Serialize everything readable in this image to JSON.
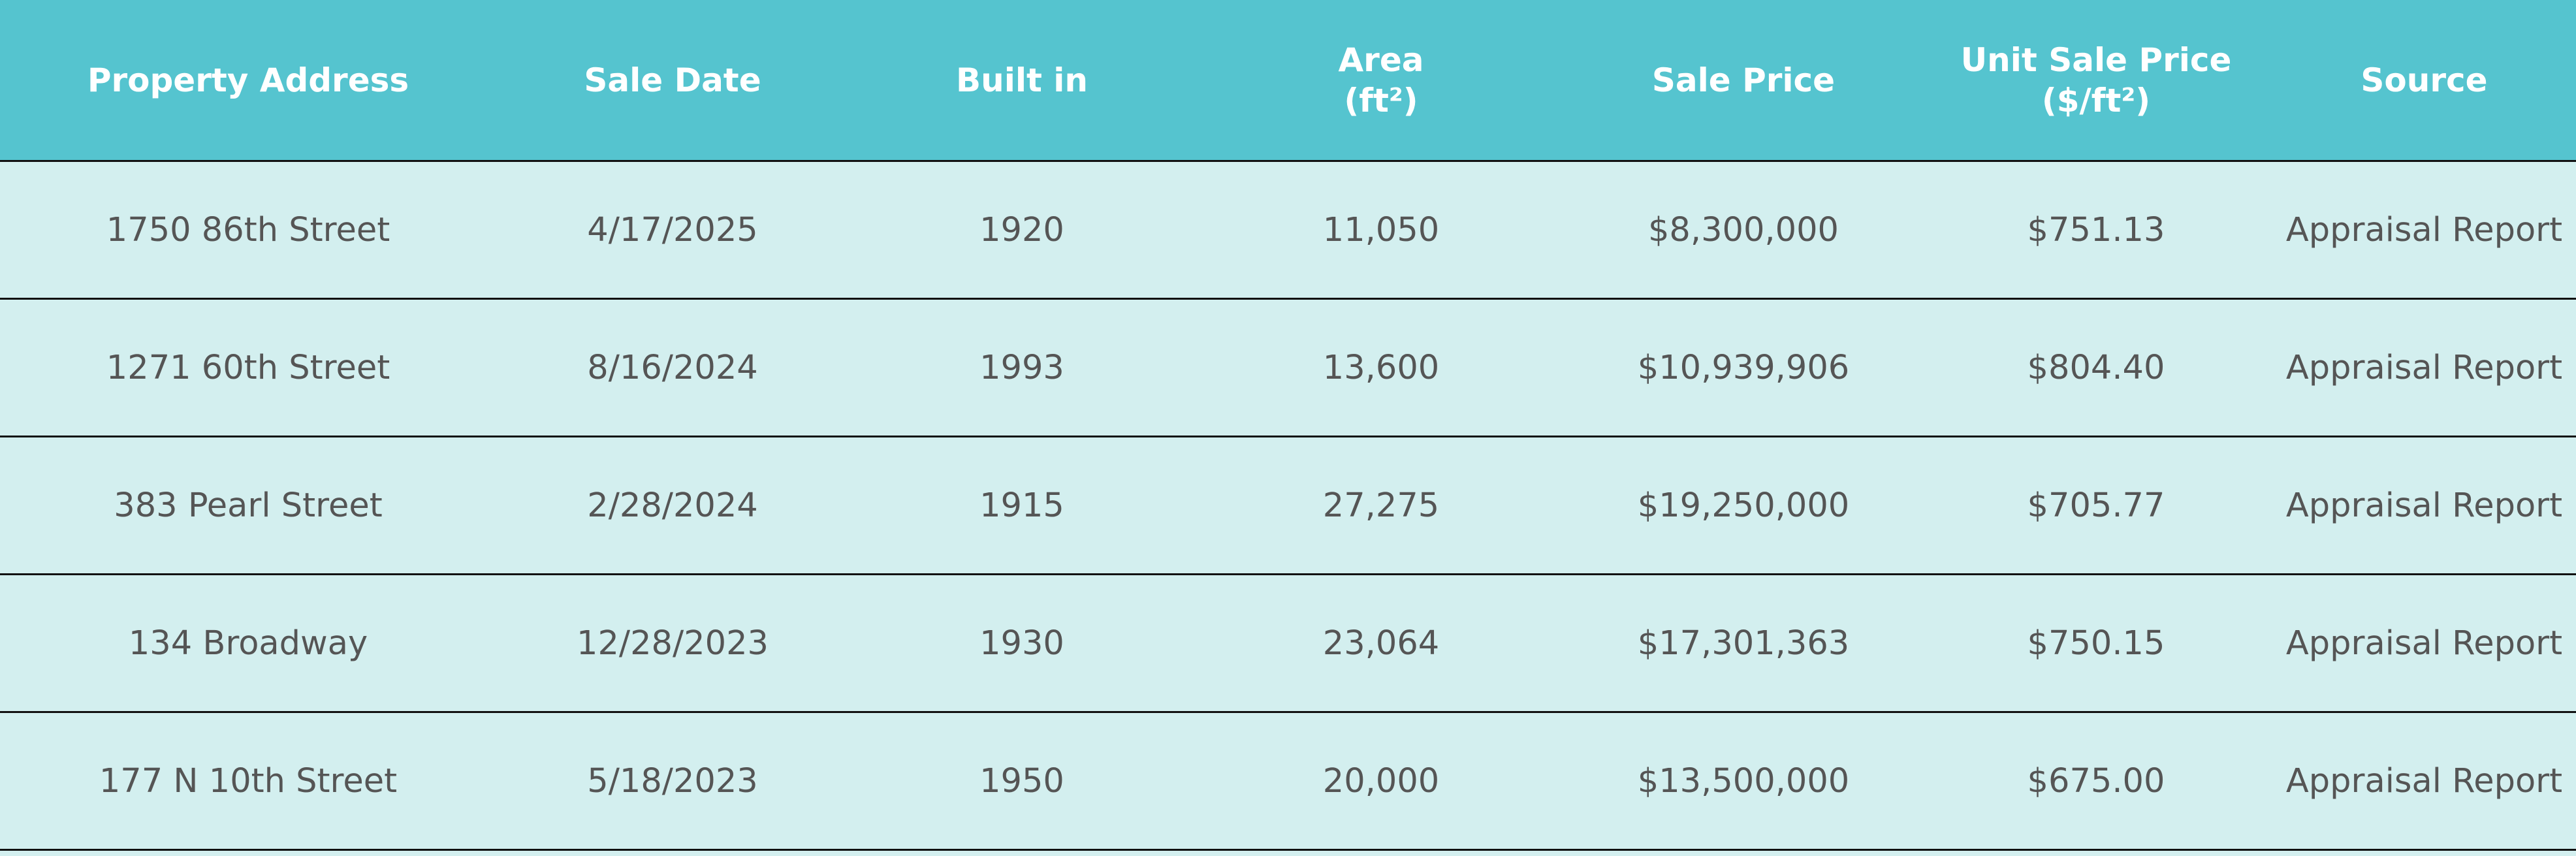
{
  "table": {
    "headers": [
      {
        "line1": "Property Address",
        "line2": ""
      },
      {
        "line1": "Sale Date",
        "line2": ""
      },
      {
        "line1": "Built in",
        "line2": ""
      },
      {
        "line1": "Area",
        "line2": "(ft²)"
      },
      {
        "line1": "Sale Price",
        "line2": ""
      },
      {
        "line1": "Unit Sale Price",
        "line2": "($/ft²)"
      },
      {
        "line1": "Source",
        "line2": ""
      }
    ],
    "rows": [
      [
        "1750 86th Street",
        "4/17/2025",
        "1920",
        "11,050",
        "$8,300,000",
        "$751.13",
        "Appraisal Report"
      ],
      [
        "1271 60th Street",
        "8/16/2024",
        "1993",
        "13,600",
        "$10,939,906",
        "$804.40",
        "Appraisal Report"
      ],
      [
        "383 Pearl Street",
        "2/28/2024",
        "1915",
        "27,275",
        "$19,250,000",
        "$705.77",
        "Appraisal Report"
      ],
      [
        "134 Broadway",
        "12/28/2023",
        "1930",
        "23,064",
        "$17,301,363",
        "$750.15",
        "Appraisal Report"
      ],
      [
        "177 N 10th Street",
        "5/18/2023",
        "1950",
        "20,000",
        "$13,500,000",
        "$675.00",
        "Appraisal Report"
      ]
    ]
  },
  "colors": {
    "header_background": "#55c4cf",
    "row_background": "#d3efef",
    "header_text": "#ffffff",
    "body_text": "#555555",
    "row_divider": "#111111"
  }
}
